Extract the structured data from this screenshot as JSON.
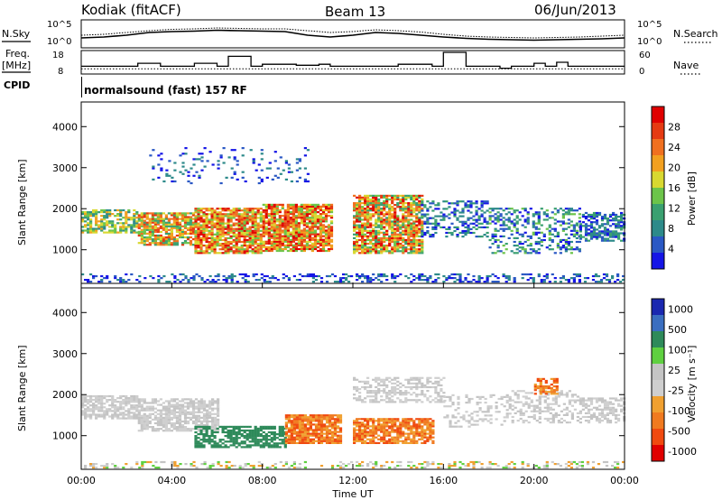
{
  "header": {
    "station": "Kodiak (fitACF)",
    "beam": "Beam 13",
    "date": "06/Jun/2013"
  },
  "left_labels": {
    "nsky": "N.Sky",
    "freq": "Freq.",
    "freq_unit": "[MHz]",
    "cpid": "CPID"
  },
  "right_labels": {
    "nsearch": "N.Search",
    "nave": "Nave"
  },
  "cpid_text": "normalsound (fast) 157 RF",
  "colors": {
    "power_scale": [
      "#1515e6",
      "#2a58c4",
      "#2d8a8a",
      "#3aa070",
      "#6cc44a",
      "#d8d830",
      "#f2a020",
      "#f07020",
      "#e53a12",
      "#e00000"
    ],
    "velocity_scale": [
      "#e00000",
      "#f04a10",
      "#f07a20",
      "#f0a030",
      "#cfcfcf",
      "#c4c4c4",
      "#5fd040",
      "#2e8a5a",
      "#3a6ec0",
      "#1a28b0"
    ]
  },
  "chart_data": [
    {
      "type": "line",
      "panel": "N.Sky / N.Search",
      "ylabels": [
        "10^5",
        "10^0"
      ],
      "series": [
        {
          "name": "N.Sky",
          "values": [
            1.6,
            1.8,
            2.2,
            2.8,
            3.0,
            3.1,
            3.3,
            3.2,
            3.1,
            3.0,
            2.2,
            1.8,
            2.2,
            2.8,
            2.6,
            2.2,
            1.8,
            1.5,
            1.3,
            1.2,
            1.1,
            1.2,
            1.3,
            1.4,
            1.6
          ]
        },
        {
          "name": "N.Search",
          "values": [
            2.2,
            2.4,
            2.8,
            3.2,
            3.5,
            3.6,
            3.8,
            3.7,
            3.6,
            3.6,
            3.2,
            2.8,
            3.0,
            3.4,
            3.2,
            2.9,
            2.4,
            2.0,
            1.8,
            1.7,
            1.6,
            1.7,
            1.8,
            2.0,
            2.2
          ]
        }
      ],
      "xlim": [
        0,
        24
      ]
    },
    {
      "type": "line",
      "panel": "Freq. [MHz] / Nave",
      "ylabels_left": [
        "18",
        "8"
      ],
      "ylabels_right": [
        "60",
        "0"
      ],
      "series": [
        {
          "name": "Freq.",
          "x": [
            0,
            1,
            1.5,
            2.5,
            3.5,
            4,
            5.0,
            6.0,
            6.5,
            7.5,
            8.0,
            9.5,
            10.5,
            11.0,
            12.0,
            13.5,
            14.0,
            15.5,
            16.0,
            17.0,
            17.5,
            18.0,
            18.5,
            19.0,
            20.0,
            20.5,
            21.0,
            21.5,
            22.5,
            23.5,
            24
          ],
          "values": [
            11,
            11,
            11,
            12.5,
            11,
            11,
            12.5,
            11,
            16,
            11,
            12,
            11.5,
            12,
            11,
            11,
            11,
            12,
            11,
            18,
            11,
            11,
            11,
            10,
            11,
            12.5,
            11,
            13,
            11,
            11,
            11,
            11
          ]
        },
        {
          "name": "Nave",
          "values": [
            10,
            10,
            10,
            10,
            10,
            10,
            10,
            10,
            10,
            10,
            10,
            10,
            10,
            10,
            10,
            10,
            10,
            10,
            10,
            10,
            10,
            10,
            10,
            10,
            10
          ]
        }
      ],
      "xlim": [
        0,
        24
      ]
    },
    {
      "type": "heatmap",
      "panel": "Power",
      "ylabel": "Slant Range [km]",
      "yticks": [
        1000,
        2000,
        3000,
        4000
      ],
      "ylim": [
        180,
        4600
      ],
      "xlim": [
        0,
        24
      ],
      "colorbar": {
        "label": "Power [dB]",
        "ticks": [
          4,
          8,
          12,
          16,
          20,
          24,
          28
        ],
        "range": [
          0,
          30
        ]
      }
    },
    {
      "type": "heatmap",
      "panel": "Velocity",
      "ylabel": "Slant Range [km]",
      "yticks": [
        1000,
        2000,
        3000,
        4000
      ],
      "ylim": [
        180,
        4600
      ],
      "xlim": [
        0,
        24
      ],
      "xticks": [
        "00:00",
        "04:00",
        "08:00",
        "12:00",
        "16:00",
        "20:00",
        "00:00"
      ],
      "xlabel": "Time UT",
      "colorbar": {
        "label": "Velocity [m s⁻¹]",
        "ticks": [
          1000,
          500,
          100,
          25,
          -25,
          -100,
          -500,
          -1000
        ]
      }
    }
  ]
}
